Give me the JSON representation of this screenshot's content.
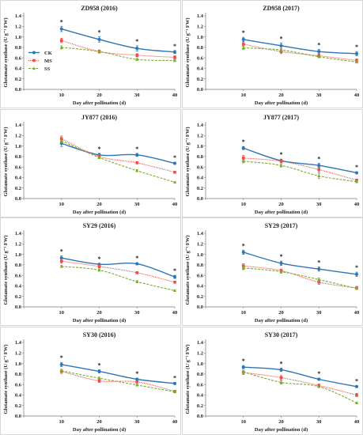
{
  "style": {
    "colors": {
      "CK": "#2e75b6",
      "MS": "#e8504a",
      "SS": "#7aab2e"
    },
    "line_styles": {
      "CK": "solid",
      "MS": "dotted",
      "SS": "dashed"
    },
    "markers": {
      "CK": "circle",
      "MS": "square",
      "SS": "triangle"
    }
  },
  "chart_data": [
    {
      "type": "line",
      "title": "ZD958 (2016)",
      "xlabel": "Day after pollination (d)",
      "ylabel": "Glutamate synthase (U g⁻¹ FW)",
      "x": [
        10,
        20,
        30,
        40
      ],
      "xlim": [
        0,
        40
      ],
      "ylim": [
        0,
        1.4
      ],
      "yticks": [
        0,
        0.2,
        0.4,
        0.6,
        0.8,
        1.0,
        1.2,
        1.4
      ],
      "legend": {
        "position": "left",
        "entries": [
          "CK",
          "MS",
          "SS"
        ]
      },
      "series": [
        {
          "name": "CK",
          "values": [
            1.15,
            0.95,
            0.78,
            0.71
          ],
          "errors": [
            0.05,
            0.05,
            0.05,
            0.03
          ]
        },
        {
          "name": "MS",
          "values": [
            0.93,
            0.72,
            0.65,
            0.61
          ],
          "errors": [
            0.04,
            0.03,
            0.03,
            0.03
          ]
        },
        {
          "name": "SS",
          "values": [
            0.8,
            0.72,
            0.57,
            0.55
          ],
          "errors": [
            0.03,
            0.02,
            0.02,
            0.02
          ]
        }
      ],
      "significance": [
        "*",
        "*",
        "*",
        "*"
      ]
    },
    {
      "type": "line",
      "title": "ZD958 (2017)",
      "xlabel": "Day after pollination (d)",
      "ylabel": "Glutamate synthase (U g⁻¹ FW)",
      "x": [
        10,
        20,
        30,
        40
      ],
      "xlim": [
        0,
        40
      ],
      "ylim": [
        0,
        1.4
      ],
      "yticks": [
        0,
        0.2,
        0.4,
        0.6,
        0.8,
        1.0,
        1.2,
        1.4
      ],
      "series": [
        {
          "name": "CK",
          "values": [
            0.95,
            0.83,
            0.72,
            0.68
          ],
          "errors": [
            0.04,
            0.05,
            0.04,
            0.04
          ]
        },
        {
          "name": "MS",
          "values": [
            0.86,
            0.72,
            0.64,
            0.55
          ],
          "errors": [
            0.04,
            0.04,
            0.03,
            0.03
          ]
        },
        {
          "name": "SS",
          "values": [
            0.79,
            0.75,
            0.62,
            0.52
          ],
          "errors": [
            0.03,
            0.03,
            0.02,
            0.02
          ]
        }
      ],
      "significance": [
        "*",
        "*",
        "*",
        "*"
      ]
    },
    {
      "type": "line",
      "title": "JY877 (2016)",
      "xlabel": "Day after pollination (d)",
      "ylabel": "Glutamate synthase (U g⁻¹ FW)",
      "x": [
        10,
        20,
        30,
        40
      ],
      "xlim": [
        0,
        40
      ],
      "ylim": [
        0,
        1.4
      ],
      "yticks": [
        0,
        0.2,
        0.4,
        0.6,
        0.8,
        1.0,
        1.2,
        1.4
      ],
      "series": [
        {
          "name": "CK",
          "values": [
            1.05,
            0.83,
            0.83,
            0.67
          ],
          "errors": [
            0.06,
            0.03,
            0.03,
            0.02
          ]
        },
        {
          "name": "MS",
          "values": [
            1.14,
            0.8,
            0.68,
            0.5
          ],
          "errors": [
            0.05,
            0.03,
            0.02,
            0.02
          ]
        },
        {
          "name": "SS",
          "values": [
            1.1,
            0.78,
            0.53,
            0.31
          ],
          "errors": [
            0.04,
            0.02,
            0.02,
            0.01
          ]
        }
      ],
      "significance": [
        "",
        "*",
        "*",
        "*"
      ]
    },
    {
      "type": "line",
      "title": "JY877 (2017)",
      "xlabel": "Day after pollination (d)",
      "ylabel": "Glutamate synthase (U g⁻¹ FW)",
      "x": [
        10,
        20,
        30,
        40
      ],
      "xlim": [
        0,
        40
      ],
      "ylim": [
        0,
        1.4
      ],
      "yticks": [
        0,
        0.2,
        0.4,
        0.6,
        0.8,
        1.0,
        1.2,
        1.4
      ],
      "series": [
        {
          "name": "CK",
          "values": [
            0.96,
            0.72,
            0.63,
            0.49
          ],
          "errors": [
            0.03,
            0.03,
            0.04,
            0.02
          ]
        },
        {
          "name": "MS",
          "values": [
            0.77,
            0.71,
            0.55,
            0.35
          ],
          "errors": [
            0.05,
            0.03,
            0.05,
            0.02
          ]
        },
        {
          "name": "SS",
          "values": [
            0.71,
            0.63,
            0.43,
            0.32
          ],
          "errors": [
            0.03,
            0.03,
            0.05,
            0.02
          ]
        }
      ],
      "significance": [
        "*",
        "*",
        "*",
        "*"
      ]
    },
    {
      "type": "line",
      "title": "SY29 (2016)",
      "xlabel": "Day after pollination (d)",
      "ylabel": "Glutamate synthase (U g⁻¹ FW)",
      "x": [
        10,
        20,
        30,
        40
      ],
      "xlim": [
        0,
        40
      ],
      "ylim": [
        0,
        1.4
      ],
      "yticks": [
        0,
        0.2,
        0.4,
        0.6,
        0.8,
        1.0,
        1.2,
        1.4
      ],
      "series": [
        {
          "name": "CK",
          "values": [
            0.93,
            0.81,
            0.82,
            0.57
          ],
          "errors": [
            0.04,
            0.02,
            0.02,
            0.03
          ]
        },
        {
          "name": "MS",
          "values": [
            0.87,
            0.77,
            0.65,
            0.47
          ],
          "errors": [
            0.04,
            0.03,
            0.02,
            0.02
          ]
        },
        {
          "name": "SS",
          "values": [
            0.77,
            0.7,
            0.48,
            0.31
          ],
          "errors": [
            0.02,
            0.02,
            0.02,
            0.01
          ]
        }
      ],
      "significance": [
        "*",
        "*",
        "*",
        "*"
      ]
    },
    {
      "type": "line",
      "title": "SY29 (2017)",
      "xlabel": "Day after pollination (d)",
      "ylabel": "Glutamate synthase (U g⁻¹ FW)",
      "x": [
        10,
        20,
        30,
        40
      ],
      "xlim": [
        0,
        40
      ],
      "ylim": [
        0,
        1.4
      ],
      "yticks": [
        0,
        0.2,
        0.4,
        0.6,
        0.8,
        1.0,
        1.2,
        1.4
      ],
      "series": [
        {
          "name": "CK",
          "values": [
            1.04,
            0.83,
            0.72,
            0.62
          ],
          "errors": [
            0.04,
            0.04,
            0.04,
            0.04
          ]
        },
        {
          "name": "MS",
          "values": [
            0.78,
            0.69,
            0.47,
            0.36
          ],
          "errors": [
            0.04,
            0.03,
            0.04,
            0.03
          ]
        },
        {
          "name": "SS",
          "values": [
            0.74,
            0.67,
            0.52,
            0.35
          ],
          "errors": [
            0.03,
            0.03,
            0.03,
            0.02
          ]
        }
      ],
      "significance": [
        "*",
        "*",
        "*",
        "*"
      ]
    },
    {
      "type": "line",
      "title": "SY30 (2016)",
      "xlabel": "Day after pollination (d)",
      "ylabel": "Glutamate synthase (U g⁻¹ FW)",
      "x": [
        10,
        20,
        30,
        40
      ],
      "xlim": [
        0,
        40
      ],
      "ylim": [
        0,
        1.4
      ],
      "yticks": [
        0,
        0.2,
        0.4,
        0.6,
        0.8,
        1.0,
        1.2,
        1.4
      ],
      "series": [
        {
          "name": "CK",
          "values": [
            0.98,
            0.85,
            0.7,
            0.62
          ],
          "errors": [
            0.04,
            0.03,
            0.02,
            0.02
          ]
        },
        {
          "name": "MS",
          "values": [
            0.85,
            0.67,
            0.65,
            0.47
          ],
          "errors": [
            0.04,
            0.03,
            0.02,
            0.02
          ]
        },
        {
          "name": "SS",
          "values": [
            0.86,
            0.72,
            0.59,
            0.46
          ],
          "errors": [
            0.03,
            0.02,
            0.02,
            0.02
          ]
        }
      ],
      "significance": [
        "*",
        "*",
        "*",
        "*"
      ]
    },
    {
      "type": "line",
      "title": "SY30 (2017)",
      "xlabel": "Day after pollination (d)",
      "ylabel": "Glutamate synthase (U g⁻¹ FW)",
      "x": [
        10,
        20,
        30,
        40
      ],
      "xlim": [
        0,
        40
      ],
      "ylim": [
        0,
        1.4
      ],
      "yticks": [
        0,
        0.2,
        0.4,
        0.6,
        0.8,
        1.0,
        1.2,
        1.4
      ],
      "series": [
        {
          "name": "CK",
          "values": [
            0.93,
            0.88,
            0.7,
            0.56
          ],
          "errors": [
            0.03,
            0.03,
            0.02,
            0.02
          ]
        },
        {
          "name": "MS",
          "values": [
            0.83,
            0.73,
            0.58,
            0.4
          ],
          "errors": [
            0.04,
            0.04,
            0.03,
            0.03
          ]
        },
        {
          "name": "SS",
          "values": [
            0.84,
            0.64,
            0.56,
            0.25
          ],
          "errors": [
            0.03,
            0.03,
            0.02,
            0.01
          ]
        }
      ],
      "significance": [
        "*",
        "*",
        "*",
        "*"
      ]
    }
  ]
}
